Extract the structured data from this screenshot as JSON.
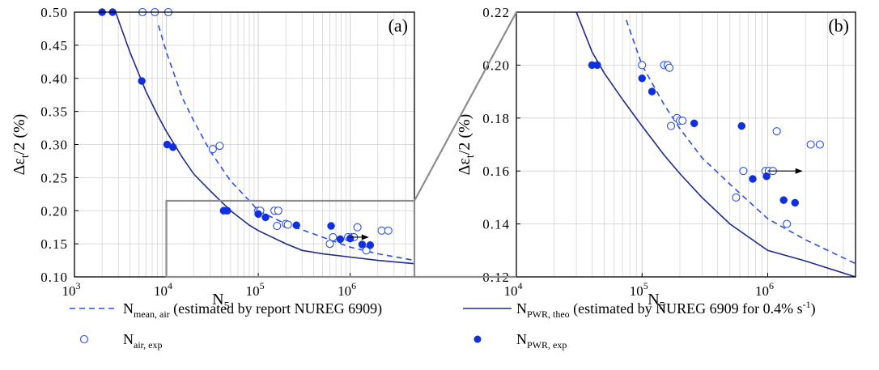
{
  "chart_data": [
    {
      "type": "scatter",
      "panel_label": "(a)",
      "xlabel": "N5",
      "ylabel": "Δεt/2 (%)",
      "xscale": "log",
      "xlim": [
        1000,
        5000000
      ],
      "ylim": [
        0.1,
        0.5
      ],
      "grid": true,
      "x_ticks": [
        {
          "base": "10",
          "exp": "3"
        },
        {
          "base": "10",
          "exp": "4"
        },
        {
          "base": "10",
          "exp": "5"
        },
        {
          "base": "10",
          "exp": "6"
        }
      ],
      "x_tick_values": [
        1000,
        10000,
        100000,
        1000000
      ],
      "y_ticks": [
        "0.10",
        "0.15",
        "0.20",
        "0.25",
        "0.30",
        "0.35",
        "0.40",
        "0.45",
        "0.50"
      ],
      "y_tick_values": [
        0.1,
        0.15,
        0.2,
        0.25,
        0.3,
        0.35,
        0.4,
        0.45,
        0.5
      ],
      "series": [
        {
          "key": "mean_air",
          "style": "dashed-line",
          "color": "#2a4ee8",
          "x": [
            8200,
            10000,
            15000,
            20000,
            30000,
            50000,
            80000,
            100000,
            200000,
            500000,
            1000000,
            2000000,
            5000000
          ],
          "y": [
            0.48,
            0.44,
            0.37,
            0.335,
            0.29,
            0.245,
            0.215,
            0.2,
            0.18,
            0.16,
            0.145,
            0.135,
            0.125
          ]
        },
        {
          "key": "pwr_theo",
          "style": "solid-line",
          "color": "#1f2b8a",
          "x": [
            2800,
            4000,
            6000,
            8000,
            10000,
            15000,
            20000,
            30000,
            50000,
            80000,
            100000,
            200000,
            300000,
            500000,
            1000000,
            2000000,
            5000000
          ],
          "y": [
            0.5,
            0.44,
            0.38,
            0.345,
            0.32,
            0.28,
            0.255,
            0.23,
            0.2,
            0.178,
            0.17,
            0.15,
            0.14,
            0.135,
            0.13,
            0.125,
            0.12
          ]
        },
        {
          "key": "air_exp",
          "style": "open-circle",
          "color": "#2a4ee8",
          "x": [
            5500,
            7500,
            10500,
            32000,
            38000,
            100000,
            105000,
            150000,
            165000,
            160000,
            200000,
            210000,
            600000,
            650000,
            950000,
            1050000,
            1100000,
            1200000,
            1500000,
            2200000,
            2600000
          ],
          "y": [
            0.5,
            0.5,
            0.5,
            0.293,
            0.298,
            0.2,
            0.2,
            0.2,
            0.2,
            0.177,
            0.18,
            0.179,
            0.15,
            0.16,
            0.16,
            0.16,
            0.16,
            0.175,
            0.14,
            0.17,
            0.17
          ]
        },
        {
          "key": "pwr_exp",
          "style": "filled-circle",
          "color": "#1030e0",
          "x": [
            2000,
            2600,
            5400,
            10200,
            11800,
            42000,
            46000,
            100000,
            120000,
            260000,
            620000,
            780000,
            1000000,
            1350000,
            1650000
          ],
          "y": [
            0.5,
            0.5,
            0.396,
            0.3,
            0.296,
            0.2,
            0.2,
            0.195,
            0.19,
            0.178,
            0.177,
            0.157,
            0.158,
            0.149,
            0.148
          ]
        }
      ]
    },
    {
      "type": "scatter",
      "panel_label": "(b)",
      "xlabel": "N5",
      "ylabel": "Δεt/2 (%)",
      "xscale": "log",
      "xlim": [
        10000,
        5000000
      ],
      "ylim": [
        0.12,
        0.22
      ],
      "grid": true,
      "x_ticks": [
        {
          "base": "10",
          "exp": "4"
        },
        {
          "base": "10",
          "exp": "5"
        },
        {
          "base": "10",
          "exp": "6"
        }
      ],
      "x_tick_values": [
        10000,
        100000,
        1000000
      ],
      "y_ticks": [
        "0.12",
        "0.14",
        "0.16",
        "0.18",
        "0.20",
        "0.22"
      ],
      "y_tick_values": [
        0.12,
        0.14,
        0.16,
        0.18,
        0.2,
        0.22
      ],
      "series": [
        {
          "key": "mean_air",
          "style": "dashed-line",
          "color": "#2a4ee8",
          "x": [
            75000,
            100000,
            150000,
            200000,
            300000,
            500000,
            1000000,
            2000000,
            5000000
          ],
          "y": [
            0.217,
            0.2,
            0.185,
            0.176,
            0.165,
            0.155,
            0.142,
            0.134,
            0.125
          ]
        },
        {
          "key": "pwr_theo",
          "style": "solid-line",
          "color": "#1f2b8a",
          "x": [
            30000,
            40000,
            50000,
            70000,
            100000,
            150000,
            200000,
            300000,
            500000,
            1000000,
            2000000,
            5000000
          ],
          "y": [
            0.22,
            0.205,
            0.197,
            0.187,
            0.177,
            0.166,
            0.159,
            0.15,
            0.14,
            0.13,
            0.126,
            0.12
          ]
        },
        {
          "key": "air_exp",
          "style": "open-circle",
          "color": "#2a4ee8",
          "x": [
            100000,
            150000,
            160000,
            165000,
            170000,
            190000,
            200000,
            210000,
            560000,
            640000,
            960000,
            1020000,
            1100000,
            1180000,
            1420000,
            2200000,
            2600000
          ],
          "y": [
            0.2,
            0.2,
            0.2,
            0.199,
            0.177,
            0.18,
            0.179,
            0.179,
            0.15,
            0.16,
            0.16,
            0.16,
            0.16,
            0.175,
            0.14,
            0.17,
            0.17
          ]
        },
        {
          "key": "pwr_exp",
          "style": "filled-circle",
          "color": "#1030e0",
          "x": [
            40000,
            44000,
            100000,
            120000,
            260000,
            620000,
            760000,
            980000,
            1340000,
            1650000
          ],
          "y": [
            0.2,
            0.2,
            0.195,
            0.19,
            0.178,
            0.177,
            0.157,
            0.158,
            0.149,
            0.148
          ]
        }
      ]
    }
  ],
  "legend": {
    "placement": "bottom",
    "items": [
      {
        "key": "mean_air",
        "main": "N",
        "sub": "mean, air",
        "note": " (estimated by report NUREG 6909)"
      },
      {
        "key": "pwr_theo",
        "main": "N",
        "sub": "PWR, theo",
        "note": " (estimated by NUREG 6909 for 0.4% s",
        "note_sup": "-1",
        "note_end": ")"
      },
      {
        "key": "air_exp",
        "main": "N",
        "sub": "air, exp",
        "note": ""
      },
      {
        "key": "pwr_exp",
        "main": "N",
        "sub": "PWR, exp",
        "note": ""
      }
    ]
  },
  "colors": {
    "dash": "#2a4ee8",
    "solid": "#1f2b8a",
    "open": "#2a4ee8",
    "filled": "#1030e0",
    "frame": "#000000",
    "grid": "#d0d0d0",
    "zoom": "#8c8c8c"
  }
}
